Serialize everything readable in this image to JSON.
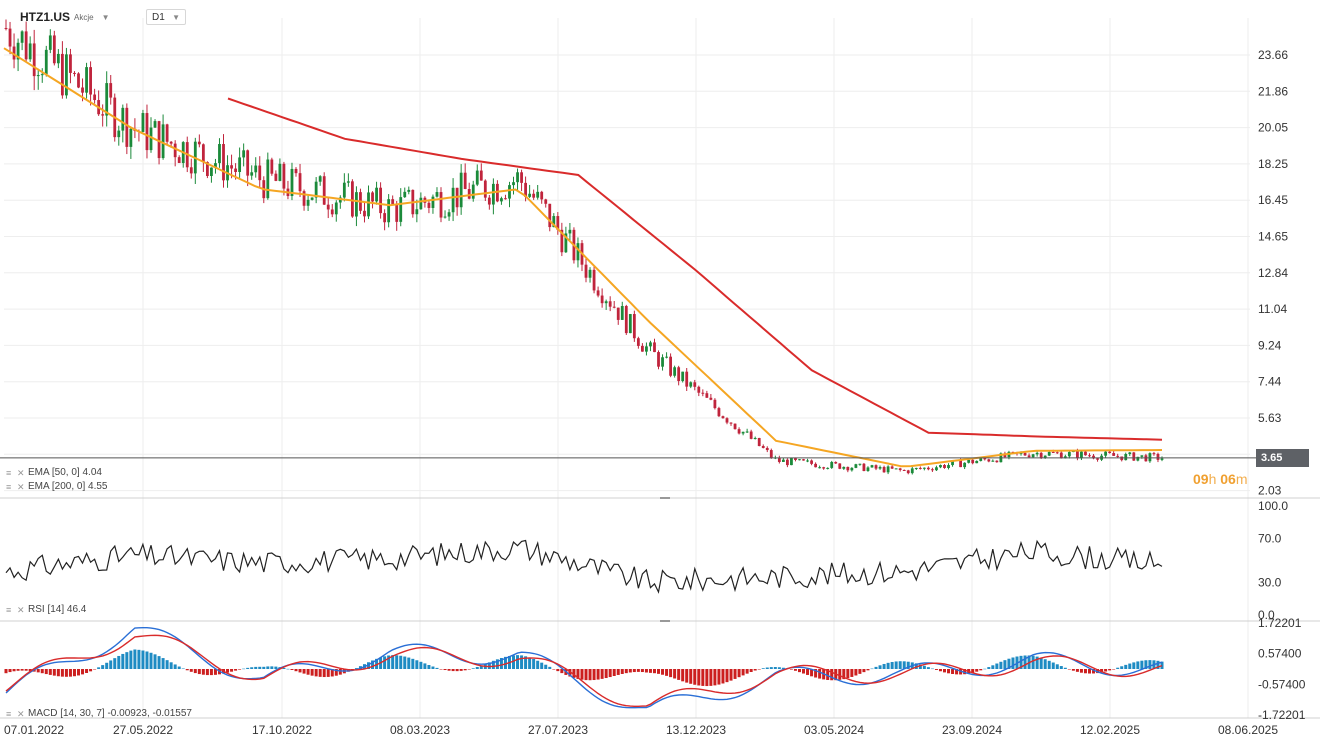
{
  "header": {
    "ticker": "HTZ1.US",
    "ticker_type": "Akcje",
    "timeframe": "D1"
  },
  "price_panel": {
    "current_price_label": "3.65",
    "countdown_hours": "09",
    "countdown_h_unit": "h",
    "countdown_minutes": "06",
    "countdown_m_unit": "m",
    "ema50_legend": "EMA [50, 0] 4.04",
    "ema200_legend": "EMA [200, 0] 4.55",
    "colors": {
      "ema50": "#f5a623",
      "ema200": "#d92b2b",
      "candle_up": "#1b8a3a",
      "candle_down": "#c0243c",
      "current_line": "#555555"
    }
  },
  "rsi_panel": {
    "legend": "RSI [14] 46.4",
    "axis_labels": [
      "100.0",
      "70.0",
      "30.0",
      "0.0"
    ],
    "levels": [
      100,
      70,
      30,
      0
    ]
  },
  "macd_panel": {
    "legend": "MACD [14, 30, 7] -0.00923, -0.01557",
    "axis_labels": [
      "1.72201",
      "0.57400",
      "-0.57400",
      "-1.72201"
    ],
    "colors": {
      "macd": "#2a6fd6",
      "signal": "#d92b2b",
      "hist_pos": "#1e8bc3",
      "hist_neg": "#cc1f1f"
    }
  },
  "x_axis_labels": [
    "07.01.2022",
    "27.05.2022",
    "17.10.2022",
    "08.03.2023",
    "27.07.2023",
    "13.12.2023",
    "03.05.2024",
    "23.09.2024",
    "12.02.2025",
    "08.06.2025"
  ],
  "chart_data": [
    {
      "type": "candlestick",
      "title": "HTZ1.US",
      "timeframe": "D1",
      "y_tick_labels": [
        "23.66",
        "21.86",
        "20.05",
        "18.25",
        "16.45",
        "14.65",
        "12.84",
        "11.04",
        "9.24",
        "7.44",
        "5.63",
        "3.83",
        "2.03"
      ],
      "ylim": [
        1.5,
        26
      ],
      "last_price": 3.65,
      "x": [
        "07.01.2022",
        "27.05.2022",
        "17.10.2022",
        "08.03.2023",
        "27.07.2023",
        "13.12.2023",
        "03.05.2024",
        "23.09.2024",
        "12.02.2025",
        "03.2025"
      ],
      "close": [
        25.0,
        20.0,
        17.5,
        16.0,
        17.5,
        9.0,
        3.5,
        3.0,
        3.9,
        3.65
      ],
      "series": [
        {
          "name": "EMA [50, 0]",
          "x": [
            "07.01.2022",
            "27.05.2022",
            "17.10.2022",
            "08.03.2023",
            "27.07.2023",
            "13.12.2023",
            "03.05.2024",
            "23.09.2024",
            "12.02.2025",
            "03.2025"
          ],
          "values": [
            24.0,
            20.0,
            17.0,
            16.2,
            17.0,
            10.5,
            4.5,
            3.2,
            4.0,
            4.04
          ]
        },
        {
          "name": "EMA [200, 0]",
          "x": [
            "05.2022",
            "17.10.2022",
            "08.03.2023",
            "27.07.2023",
            "13.12.2023",
            "03.05.2024",
            "23.09.2024",
            "12.02.2025",
            "03.2025"
          ],
          "values": [
            21.5,
            19.5,
            18.5,
            17.7,
            13.0,
            8.0,
            4.9,
            4.7,
            4.55
          ]
        }
      ]
    },
    {
      "type": "line",
      "title": "RSI [14]",
      "ylim": [
        0,
        100
      ],
      "x": [
        "07.01.2022",
        "27.05.2022",
        "17.10.2022",
        "08.03.2023",
        "27.07.2023",
        "13.12.2023",
        "03.05.2024",
        "23.09.2024",
        "12.02.2025",
        "03.2025"
      ],
      "series": [
        {
          "name": "RSI [14]",
          "values": [
            40,
            55,
            48,
            52,
            62,
            30,
            35,
            40,
            58,
            46.4
          ]
        }
      ]
    },
    {
      "type": "line",
      "title": "MACD [14, 30, 7]",
      "ylim": [
        -1.72201,
        1.72201
      ],
      "x": [
        "07.01.2022",
        "27.05.2022",
        "17.10.2022",
        "08.03.2023",
        "27.07.2023",
        "13.12.2023",
        "03.05.2024",
        "23.09.2024",
        "12.02.2025",
        "03.2025"
      ],
      "series": [
        {
          "name": "MACD",
          "values": [
            -0.9,
            1.5,
            -0.4,
            0.6,
            0.5,
            -1.6,
            -0.3,
            -0.2,
            0.3,
            -0.00923
          ]
        },
        {
          "name": "Signal",
          "values": [
            -0.7,
            1.3,
            -0.3,
            0.5,
            0.4,
            -1.4,
            -0.2,
            -0.2,
            0.2,
            -0.01557
          ]
        }
      ]
    }
  ]
}
